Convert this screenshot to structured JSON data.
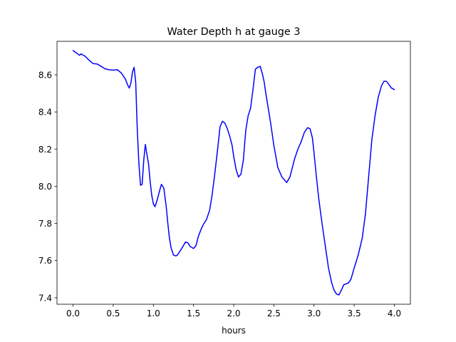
{
  "chart_data": {
    "type": "line",
    "title": "Water Depth h at gauge 3",
    "xlabel": "hours",
    "ylabel": "",
    "xlim": [
      -0.2,
      4.2
    ],
    "ylim": [
      7.365,
      8.78
    ],
    "xticks": [
      0.0,
      0.5,
      1.0,
      1.5,
      2.0,
      2.5,
      3.0,
      3.5,
      4.0
    ],
    "xtick_labels": [
      "0.0",
      "0.5",
      "1.0",
      "1.5",
      "2.0",
      "2.5",
      "3.0",
      "3.5",
      "4.0"
    ],
    "yticks": [
      7.4,
      7.6,
      7.8,
      8.0,
      8.2,
      8.4,
      8.6
    ],
    "ytick_labels": [
      "7.4",
      "7.6",
      "7.8",
      "8.0",
      "8.2",
      "8.4",
      "8.6"
    ],
    "grid": false,
    "series": [
      {
        "color": "#0000ff",
        "x": [
          0.0,
          0.05,
          0.08,
          0.1,
          0.15,
          0.2,
          0.25,
          0.3,
          0.35,
          0.4,
          0.45,
          0.5,
          0.55,
          0.6,
          0.65,
          0.68,
          0.7,
          0.72,
          0.74,
          0.76,
          0.78,
          0.8,
          0.82,
          0.84,
          0.86,
          0.88,
          0.9,
          0.92,
          0.94,
          0.96,
          0.98,
          1.0,
          1.02,
          1.05,
          1.08,
          1.1,
          1.13,
          1.16,
          1.18,
          1.2,
          1.22,
          1.25,
          1.28,
          1.3,
          1.33,
          1.36,
          1.4,
          1.43,
          1.46,
          1.5,
          1.53,
          1.56,
          1.6,
          1.63,
          1.66,
          1.7,
          1.73,
          1.76,
          1.8,
          1.83,
          1.86,
          1.89,
          1.92,
          1.95,
          1.98,
          2.0,
          2.03,
          2.06,
          2.09,
          2.12,
          2.15,
          2.18,
          2.21,
          2.24,
          2.27,
          2.3,
          2.33,
          2.36,
          2.38,
          2.4,
          2.43,
          2.46,
          2.5,
          2.55,
          2.6,
          2.63,
          2.66,
          2.7,
          2.73,
          2.76,
          2.8,
          2.84,
          2.88,
          2.92,
          2.95,
          2.98,
          3.0,
          3.03,
          3.06,
          3.1,
          3.14,
          3.18,
          3.22,
          3.25,
          3.28,
          3.31,
          3.34,
          3.37,
          3.4,
          3.43,
          3.46,
          3.5,
          3.55,
          3.6,
          3.64,
          3.68,
          3.72,
          3.76,
          3.8,
          3.84,
          3.87,
          3.9,
          3.93,
          3.96,
          4.0
        ],
        "y": [
          8.73,
          8.715,
          8.705,
          8.712,
          8.7,
          8.678,
          8.66,
          8.658,
          8.645,
          8.632,
          8.627,
          8.625,
          8.627,
          8.61,
          8.578,
          8.545,
          8.528,
          8.555,
          8.615,
          8.64,
          8.56,
          8.3,
          8.12,
          8.005,
          8.01,
          8.14,
          8.225,
          8.17,
          8.12,
          8.025,
          7.95,
          7.905,
          7.89,
          7.93,
          7.98,
          8.01,
          7.99,
          7.89,
          7.8,
          7.72,
          7.67,
          7.63,
          7.625,
          7.63,
          7.65,
          7.67,
          7.7,
          7.695,
          7.675,
          7.665,
          7.68,
          7.73,
          7.775,
          7.8,
          7.82,
          7.87,
          7.95,
          8.05,
          8.2,
          8.32,
          8.35,
          8.34,
          8.31,
          8.27,
          8.22,
          8.16,
          8.09,
          8.05,
          8.065,
          8.14,
          8.3,
          8.38,
          8.42,
          8.52,
          8.63,
          8.64,
          8.645,
          8.6,
          8.56,
          8.5,
          8.42,
          8.34,
          8.22,
          8.1,
          8.05,
          8.035,
          8.02,
          8.05,
          8.1,
          8.15,
          8.2,
          8.24,
          8.29,
          8.315,
          8.31,
          8.26,
          8.18,
          8.05,
          7.93,
          7.8,
          7.68,
          7.56,
          7.48,
          7.44,
          7.42,
          7.415,
          7.44,
          7.47,
          7.475,
          7.48,
          7.5,
          7.56,
          7.63,
          7.72,
          7.85,
          8.05,
          8.25,
          8.38,
          8.48,
          8.54,
          8.565,
          8.565,
          8.55,
          8.53,
          8.52
        ]
      }
    ]
  }
}
